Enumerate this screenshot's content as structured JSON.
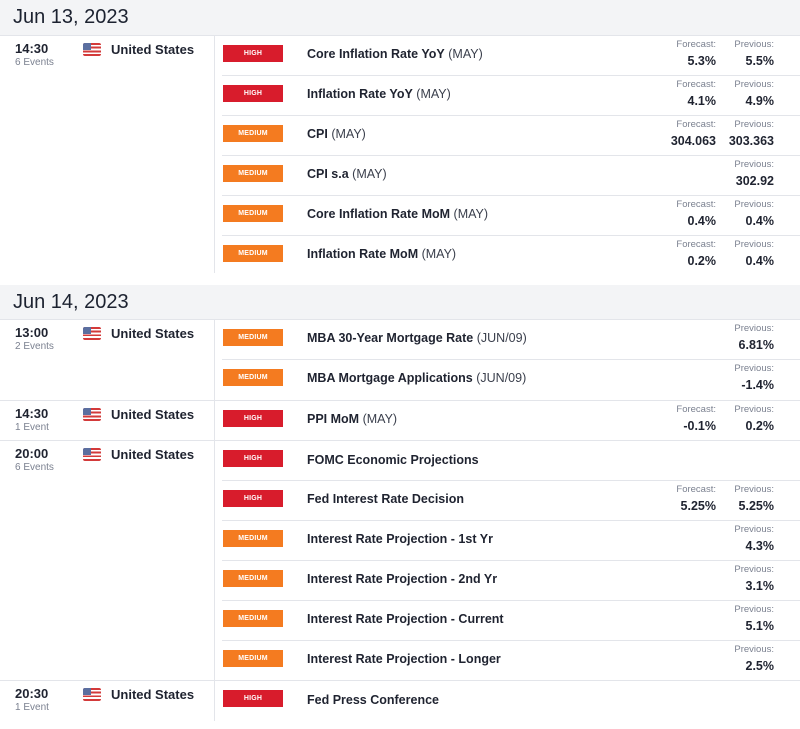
{
  "days": [
    {
      "date": "Jun 13, 2023",
      "groups": [
        {
          "time": "14:30",
          "events_count": "6 Events",
          "country": "United States",
          "events": [
            {
              "importance": "HIGH",
              "title": "Core Inflation Rate YoY",
              "period": "(MAY)",
              "forecast_label": "Forecast:",
              "forecast": "5.3%",
              "previous_label": "Previous:",
              "previous": "5.5%"
            },
            {
              "importance": "HIGH",
              "title": "Inflation Rate YoY",
              "period": "(MAY)",
              "forecast_label": "Forecast:",
              "forecast": "4.1%",
              "previous_label": "Previous:",
              "previous": "4.9%"
            },
            {
              "importance": "MEDIUM",
              "title": "CPI",
              "period": "(MAY)",
              "forecast_label": "Forecast:",
              "forecast": "304.063",
              "previous_label": "Previous:",
              "previous": "303.363"
            },
            {
              "importance": "MEDIUM",
              "title": "CPI s.a",
              "period": "(MAY)",
              "forecast_label": "",
              "forecast": "",
              "previous_label": "Previous:",
              "previous": "302.92"
            },
            {
              "importance": "MEDIUM",
              "title": "Core Inflation Rate MoM",
              "period": "(MAY)",
              "forecast_label": "Forecast:",
              "forecast": "0.4%",
              "previous_label": "Previous:",
              "previous": "0.4%"
            },
            {
              "importance": "MEDIUM",
              "title": "Inflation Rate MoM",
              "period": "(MAY)",
              "forecast_label": "Forecast:",
              "forecast": "0.2%",
              "previous_label": "Previous:",
              "previous": "0.4%"
            }
          ]
        }
      ]
    },
    {
      "date": "Jun 14, 2023",
      "groups": [
        {
          "time": "13:00",
          "events_count": "2 Events",
          "country": "United States",
          "events": [
            {
              "importance": "MEDIUM",
              "title": "MBA 30-Year Mortgage Rate",
              "period": "(JUN/09)",
              "forecast_label": "",
              "forecast": "",
              "previous_label": "Previous:",
              "previous": "6.81%"
            },
            {
              "importance": "MEDIUM",
              "title": "MBA Mortgage Applications",
              "period": "(JUN/09)",
              "forecast_label": "",
              "forecast": "",
              "previous_label": "Previous:",
              "previous": "-1.4%"
            }
          ]
        },
        {
          "time": "14:30",
          "events_count": "1 Event",
          "country": "United States",
          "events": [
            {
              "importance": "HIGH",
              "title": "PPI MoM",
              "period": "(MAY)",
              "forecast_label": "Forecast:",
              "forecast": "-0.1%",
              "previous_label": "Previous:",
              "previous": "0.2%"
            }
          ]
        },
        {
          "time": "20:00",
          "events_count": "6 Events",
          "country": "United States",
          "events": [
            {
              "importance": "HIGH",
              "title": "FOMC Economic Projections",
              "period": "",
              "forecast_label": "",
              "forecast": "",
              "previous_label": "",
              "previous": ""
            },
            {
              "importance": "HIGH",
              "title": "Fed Interest Rate Decision",
              "period": "",
              "forecast_label": "Forecast:",
              "forecast": "5.25%",
              "previous_label": "Previous:",
              "previous": "5.25%"
            },
            {
              "importance": "MEDIUM",
              "title": "Interest Rate Projection - 1st Yr",
              "period": "",
              "forecast_label": "",
              "forecast": "",
              "previous_label": "Previous:",
              "previous": "4.3%"
            },
            {
              "importance": "MEDIUM",
              "title": "Interest Rate Projection - 2nd Yr",
              "period": "",
              "forecast_label": "",
              "forecast": "",
              "previous_label": "Previous:",
              "previous": "3.1%"
            },
            {
              "importance": "MEDIUM",
              "title": "Interest Rate Projection - Current",
              "period": "",
              "forecast_label": "",
              "forecast": "",
              "previous_label": "Previous:",
              "previous": "5.1%"
            },
            {
              "importance": "MEDIUM",
              "title": "Interest Rate Projection - Longer",
              "period": "",
              "forecast_label": "",
              "forecast": "",
              "previous_label": "Previous:",
              "previous": "2.5%"
            }
          ]
        },
        {
          "time": "20:30",
          "events_count": "1 Event",
          "country": "United States",
          "events": [
            {
              "importance": "HIGH",
              "title": "Fed Press Conference",
              "period": "",
              "forecast_label": "",
              "forecast": "",
              "previous_label": "",
              "previous": ""
            }
          ]
        }
      ]
    }
  ],
  "flag_icon": "us-flag-icon",
  "colors": {
    "high": "#d81c2c",
    "medium": "#f47b20",
    "header_bg": "#f3f4f6"
  }
}
